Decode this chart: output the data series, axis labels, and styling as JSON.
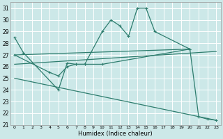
{
  "xlabel": "Humidex (Indice chaleur)",
  "bg_color": "#cce8e8",
  "grid_color": "#ffffff",
  "line_color": "#2e7d6e",
  "xlim": [
    -0.5,
    23.5
  ],
  "ylim": [
    21,
    31.5
  ],
  "xticks": [
    0,
    1,
    2,
    3,
    4,
    5,
    6,
    7,
    8,
    9,
    10,
    11,
    12,
    13,
    14,
    15,
    16,
    17,
    18,
    19,
    20,
    21,
    22,
    23
  ],
  "yticks": [
    21,
    22,
    23,
    24,
    25,
    26,
    27,
    28,
    29,
    30,
    31
  ],
  "series1_x": [
    0,
    1,
    5,
    6,
    7,
    8,
    10,
    11,
    12,
    13,
    14,
    15,
    16,
    20,
    21,
    22,
    23
  ],
  "series1_y": [
    28.5,
    27.2,
    24.0,
    26.3,
    26.2,
    26.2,
    29.0,
    30.0,
    29.5,
    28.6,
    31.0,
    31.0,
    29.0,
    27.5,
    21.7,
    21.5,
    21.4
  ],
  "series2_x": [
    0,
    4,
    5,
    6,
    7,
    8,
    10,
    20
  ],
  "series2_y": [
    27.0,
    25.5,
    25.2,
    26.0,
    26.2,
    26.2,
    26.2,
    27.5
  ],
  "series3_x": [
    0,
    20
  ],
  "series3_y": [
    27.0,
    27.5
  ],
  "series4_x": [
    0,
    23
  ],
  "series4_y": [
    26.2,
    27.3
  ],
  "series5_x": [
    0,
    23
  ],
  "series5_y": [
    25.0,
    21.4
  ]
}
